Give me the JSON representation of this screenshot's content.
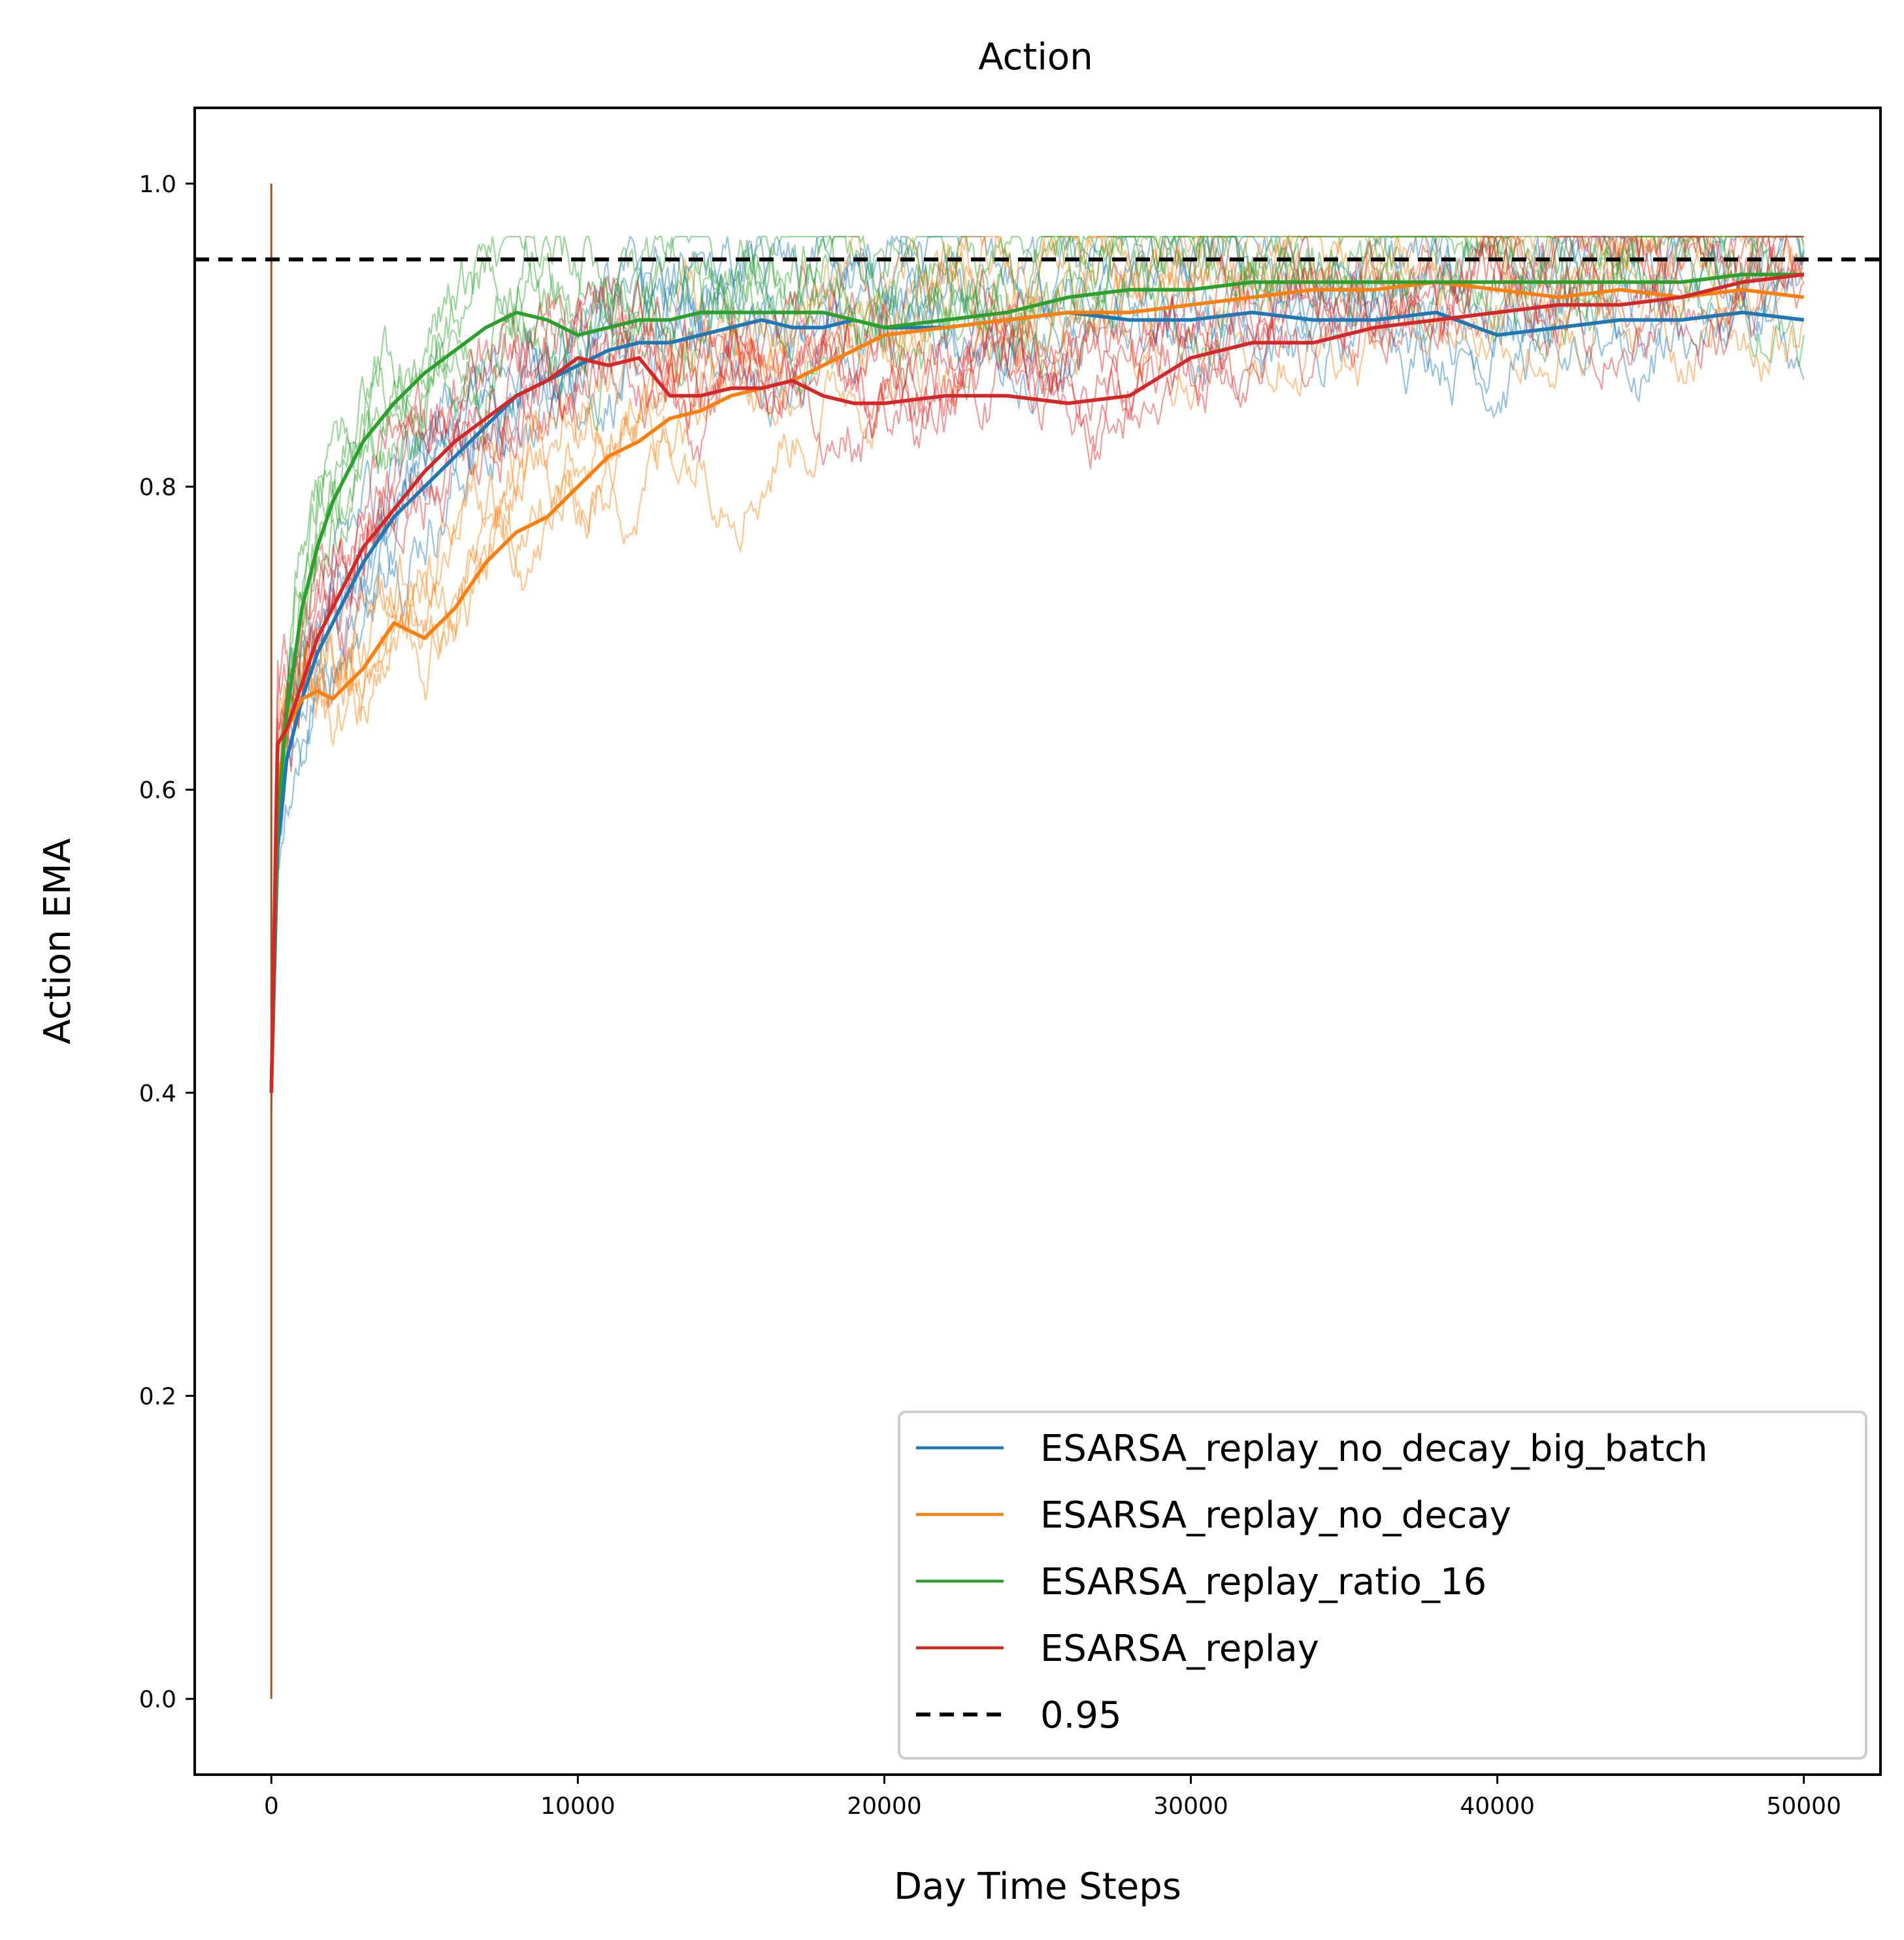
{
  "chart_data": {
    "type": "line",
    "title": "Action",
    "xlabel": "Day Time Steps",
    "ylabel": "Action EMA",
    "xlim": [
      -2500,
      52500
    ],
    "ylim": [
      -0.05,
      1.05
    ],
    "xticks": [
      0,
      10000,
      20000,
      30000,
      40000,
      50000
    ],
    "xtick_labels": [
      "0",
      "10000",
      "20000",
      "30000",
      "40000",
      "50000"
    ],
    "yticks": [
      0.0,
      0.2,
      0.4,
      0.6,
      0.8,
      1.0
    ],
    "ytick_labels": [
      "0.0",
      "0.2",
      "0.4",
      "0.6",
      "0.8",
      "1.0"
    ],
    "grid": false,
    "legend_position": "lower right",
    "series": [
      {
        "name": "ESARSA_replay_no_decay_big_batch",
        "color": "#1f77b4",
        "x": [
          0,
          200,
          500,
          1000,
          1500,
          2000,
          2500,
          3000,
          4000,
          5000,
          6000,
          7000,
          8000,
          9000,
          10000,
          11000,
          12000,
          13000,
          14000,
          15000,
          16000,
          17000,
          18000,
          19000,
          20000,
          22000,
          24000,
          26000,
          28000,
          30000,
          32000,
          34000,
          36000,
          38000,
          40000,
          42000,
          44000,
          46000,
          48000,
          50000
        ],
        "values": [
          0.4,
          0.56,
          0.62,
          0.66,
          0.69,
          0.71,
          0.73,
          0.75,
          0.78,
          0.8,
          0.82,
          0.84,
          0.86,
          0.87,
          0.88,
          0.89,
          0.895,
          0.895,
          0.9,
          0.905,
          0.91,
          0.905,
          0.905,
          0.91,
          0.905,
          0.905,
          0.91,
          0.915,
          0.91,
          0.91,
          0.915,
          0.91,
          0.91,
          0.915,
          0.9,
          0.905,
          0.91,
          0.91,
          0.915,
          0.91
        ]
      },
      {
        "name": "ESARSA_replay_no_decay",
        "color": "#ff7f0e",
        "x": [
          0,
          200,
          500,
          1000,
          1500,
          2000,
          2500,
          3000,
          4000,
          5000,
          6000,
          7000,
          8000,
          9000,
          10000,
          11000,
          12000,
          13000,
          14000,
          15000,
          16000,
          17000,
          18000,
          19000,
          20000,
          22000,
          24000,
          26000,
          28000,
          30000,
          32000,
          34000,
          36000,
          38000,
          40000,
          42000,
          44000,
          46000,
          48000,
          50000
        ],
        "values": [
          0.4,
          0.6,
          0.64,
          0.66,
          0.665,
          0.66,
          0.67,
          0.68,
          0.71,
          0.7,
          0.72,
          0.75,
          0.77,
          0.78,
          0.8,
          0.82,
          0.83,
          0.845,
          0.85,
          0.86,
          0.865,
          0.87,
          0.88,
          0.89,
          0.9,
          0.905,
          0.91,
          0.915,
          0.915,
          0.92,
          0.925,
          0.93,
          0.93,
          0.935,
          0.93,
          0.925,
          0.93,
          0.925,
          0.93,
          0.925
        ]
      },
      {
        "name": "ESARSA_replay_ratio_16",
        "color": "#2ca02c",
        "x": [
          0,
          200,
          500,
          1000,
          1500,
          2000,
          2500,
          3000,
          4000,
          5000,
          6000,
          7000,
          8000,
          9000,
          10000,
          11000,
          12000,
          13000,
          14000,
          15000,
          16000,
          17000,
          18000,
          19000,
          20000,
          22000,
          24000,
          26000,
          28000,
          30000,
          32000,
          34000,
          36000,
          38000,
          40000,
          42000,
          44000,
          46000,
          48000,
          50000
        ],
        "values": [
          0.4,
          0.58,
          0.65,
          0.72,
          0.76,
          0.79,
          0.81,
          0.83,
          0.855,
          0.875,
          0.89,
          0.905,
          0.915,
          0.91,
          0.9,
          0.905,
          0.91,
          0.91,
          0.915,
          0.915,
          0.915,
          0.915,
          0.915,
          0.91,
          0.905,
          0.91,
          0.915,
          0.925,
          0.93,
          0.93,
          0.935,
          0.935,
          0.935,
          0.935,
          0.935,
          0.935,
          0.935,
          0.935,
          0.94,
          0.94
        ]
      },
      {
        "name": "ESARSA_replay",
        "color": "#d62728",
        "x": [
          0,
          200,
          500,
          1000,
          1500,
          2000,
          2500,
          3000,
          4000,
          5000,
          6000,
          7000,
          8000,
          9000,
          10000,
          11000,
          12000,
          13000,
          14000,
          15000,
          16000,
          17000,
          18000,
          19000,
          20000,
          22000,
          24000,
          26000,
          28000,
          30000,
          32000,
          34000,
          36000,
          38000,
          40000,
          42000,
          44000,
          46000,
          48000,
          50000
        ],
        "values": [
          0.4,
          0.63,
          0.64,
          0.67,
          0.7,
          0.72,
          0.74,
          0.76,
          0.785,
          0.81,
          0.83,
          0.845,
          0.86,
          0.87,
          0.885,
          0.88,
          0.885,
          0.86,
          0.86,
          0.865,
          0.865,
          0.87,
          0.86,
          0.855,
          0.855,
          0.86,
          0.86,
          0.855,
          0.86,
          0.885,
          0.895,
          0.895,
          0.905,
          0.91,
          0.915,
          0.92,
          0.92,
          0.925,
          0.935,
          0.94
        ]
      }
    ],
    "reference_line": {
      "name": "0.95",
      "y": 0.95,
      "color": "#000000",
      "style": "dashed"
    },
    "initial_spike": {
      "x": 0,
      "y_range": [
        0.0,
        1.0
      ],
      "color": "#a0522d"
    }
  }
}
